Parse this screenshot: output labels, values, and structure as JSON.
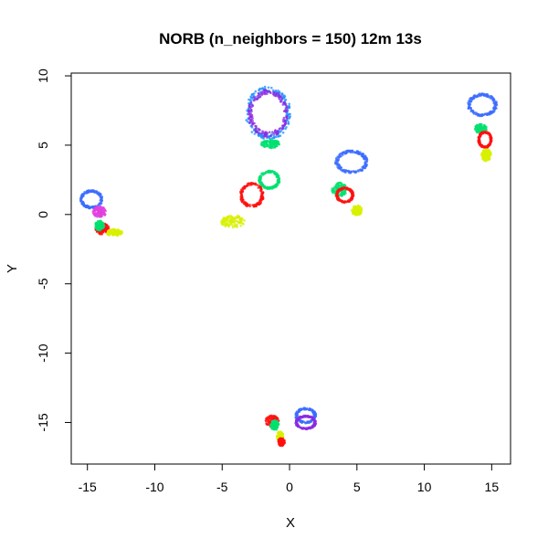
{
  "chart_data": {
    "type": "scatter",
    "title": "NORB (n_neighbors = 150) 12m 13s",
    "xlabel": "X",
    "ylabel": "Y",
    "xlim": [
      -16.2,
      16.4
    ],
    "ylim": [
      -18.0,
      10.2
    ],
    "xticks": [
      -15,
      -10,
      -5,
      0,
      5,
      10,
      15
    ],
    "yticks": [
      -15,
      -10,
      -5,
      0,
      5,
      10
    ],
    "grid": false,
    "legend": "none",
    "colors": {
      "blue": "#3b6cff",
      "purple": "#8a2be2",
      "cyan": "#1e90ff",
      "green": "#00e070",
      "red": "#ff1010",
      "yellow": "#d8f000",
      "magenta": "#e040e0"
    },
    "series": [
      {
        "color": "blue",
        "shape": "ring",
        "center": [
          -14.7,
          1.1
        ],
        "radii": [
          0.75,
          0.6
        ]
      },
      {
        "color": "magenta",
        "shape": "blob",
        "center": [
          -14.1,
          0.2
        ],
        "radii": [
          0.5,
          0.4
        ]
      },
      {
        "color": "red",
        "shape": "blob",
        "center": [
          -13.9,
          -1.0
        ],
        "radii": [
          0.5,
          0.45
        ]
      },
      {
        "color": "green",
        "shape": "blob",
        "center": [
          -14.1,
          -0.8
        ],
        "radii": [
          0.35,
          0.35
        ]
      },
      {
        "color": "yellow",
        "shape": "blob",
        "center": [
          -13.0,
          -1.3
        ],
        "radii": [
          0.6,
          0.25
        ]
      },
      {
        "color": "cyan",
        "shape": "ring",
        "center": [
          -1.6,
          7.3
        ],
        "radii": [
          1.55,
          1.75
        ]
      },
      {
        "color": "purple",
        "shape": "ring",
        "center": [
          -1.6,
          7.3
        ],
        "radii": [
          1.35,
          1.55
        ]
      },
      {
        "color": "green",
        "shape": "blob",
        "center": [
          -1.4,
          5.1
        ],
        "radii": [
          0.7,
          0.3
        ]
      },
      {
        "color": "green",
        "shape": "ring",
        "center": [
          -1.5,
          2.5
        ],
        "radii": [
          0.7,
          0.6
        ]
      },
      {
        "color": "red",
        "shape": "ring",
        "center": [
          -2.8,
          1.4
        ],
        "radii": [
          0.8,
          0.8
        ]
      },
      {
        "color": "yellow",
        "shape": "blob",
        "center": [
          -4.2,
          -0.5
        ],
        "radii": [
          0.9,
          0.45
        ]
      },
      {
        "color": "blue",
        "shape": "ring",
        "center": [
          4.6,
          3.8
        ],
        "radii": [
          1.1,
          0.75
        ]
      },
      {
        "color": "green",
        "shape": "blob",
        "center": [
          3.7,
          1.8
        ],
        "radii": [
          0.55,
          0.5
        ]
      },
      {
        "color": "red",
        "shape": "ring",
        "center": [
          4.1,
          1.4
        ],
        "radii": [
          0.6,
          0.5
        ]
      },
      {
        "color": "yellow",
        "shape": "blob",
        "center": [
          5.0,
          0.3
        ],
        "radii": [
          0.4,
          0.35
        ]
      },
      {
        "color": "blue",
        "shape": "ring",
        "center": [
          14.3,
          7.9
        ],
        "radii": [
          1.0,
          0.75
        ]
      },
      {
        "color": "green",
        "shape": "blob",
        "center": [
          14.2,
          6.2
        ],
        "radii": [
          0.45,
          0.35
        ]
      },
      {
        "color": "red",
        "shape": "ring",
        "center": [
          14.5,
          5.4
        ],
        "radii": [
          0.45,
          0.55
        ]
      },
      {
        "color": "yellow",
        "shape": "blob",
        "center": [
          14.6,
          4.3
        ],
        "radii": [
          0.35,
          0.45
        ]
      },
      {
        "color": "blue",
        "shape": "ring",
        "center": [
          1.2,
          -14.5
        ],
        "radii": [
          0.7,
          0.5
        ]
      },
      {
        "color": "purple",
        "shape": "ring",
        "center": [
          1.2,
          -15.0
        ],
        "radii": [
          0.7,
          0.45
        ]
      },
      {
        "color": "red",
        "shape": "blob",
        "center": [
          -1.3,
          -14.9
        ],
        "radii": [
          0.5,
          0.4
        ]
      },
      {
        "color": "green",
        "shape": "blob",
        "center": [
          -1.1,
          -15.2
        ],
        "radii": [
          0.3,
          0.35
        ]
      },
      {
        "color": "yellow",
        "shape": "blob",
        "center": [
          -0.7,
          -16.0
        ],
        "radii": [
          0.25,
          0.35
        ]
      },
      {
        "color": "red",
        "shape": "blob",
        "center": [
          -0.6,
          -16.4
        ],
        "radii": [
          0.25,
          0.3
        ]
      }
    ]
  }
}
